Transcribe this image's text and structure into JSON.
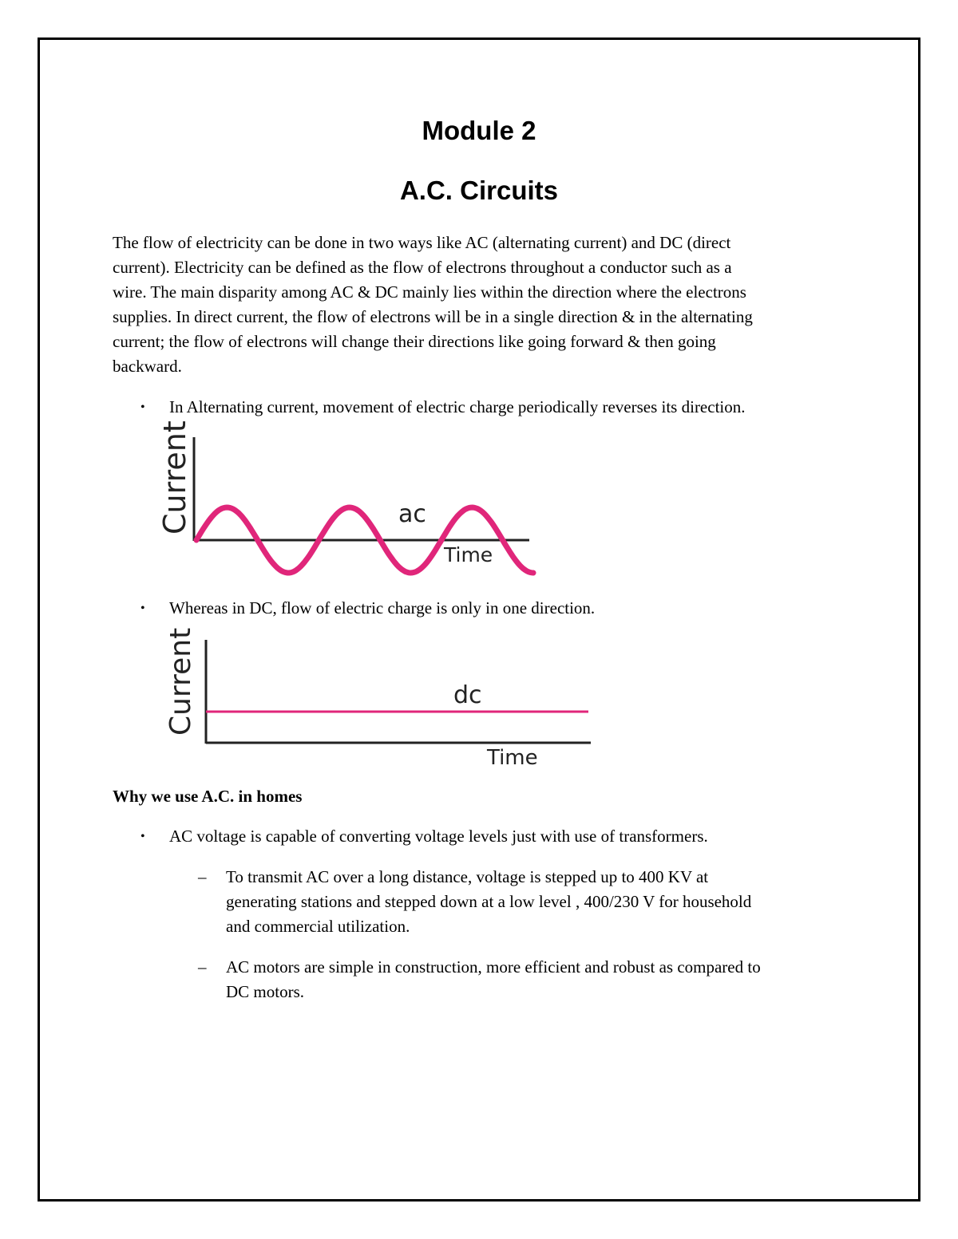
{
  "title": "Module 2",
  "subtitle": "A.C. Circuits",
  "intro_lines": [
    "The flow of electricity can be done in two ways like AC (alternating current) and DC (direct",
    "current). Electricity can be defined as the flow of electrons throughout a conductor such as a",
    "wire. The main disparity among AC & DC mainly lies within the direction where the electrons",
    "supplies. In direct current, the flow of electrons will be in a single direction & in the alternating",
    "current; the flow of electrons will change their directions like going forward & then going",
    "backward."
  ],
  "bullet_ac": "In Alternating current, movement of electric charge periodically reverses its direction.",
  "ac_figure": {
    "ylabel": "Current",
    "xlabel": "Time",
    "curve_label": "ac",
    "color": "#e0267a",
    "cycles": 2.75
  },
  "bullet_dc": "Whereas in DC, flow of electric charge is only in one direction.",
  "dc_figure": {
    "ylabel": "Current",
    "xlabel": "Time",
    "curve_label": "dc",
    "color": "#e0267a"
  },
  "why_heading": "Why we use A.C. in homes",
  "bullet_why": "AC voltage is capable of converting voltage levels just with use of transformers.",
  "sub_bullets": [
    {
      "lines": [
        "To transmit AC over a long distance, voltage is stepped up to 400 KV at",
        "generating stations and stepped down at a low level , 400/230 V for household",
        "and commercial utilization."
      ]
    },
    {
      "lines": [
        "AC motors are simple in construction, more efficient and robust as compared to",
        "DC motors."
      ]
    }
  ],
  "bullet_glyph": "•",
  "dash_glyph": "–"
}
